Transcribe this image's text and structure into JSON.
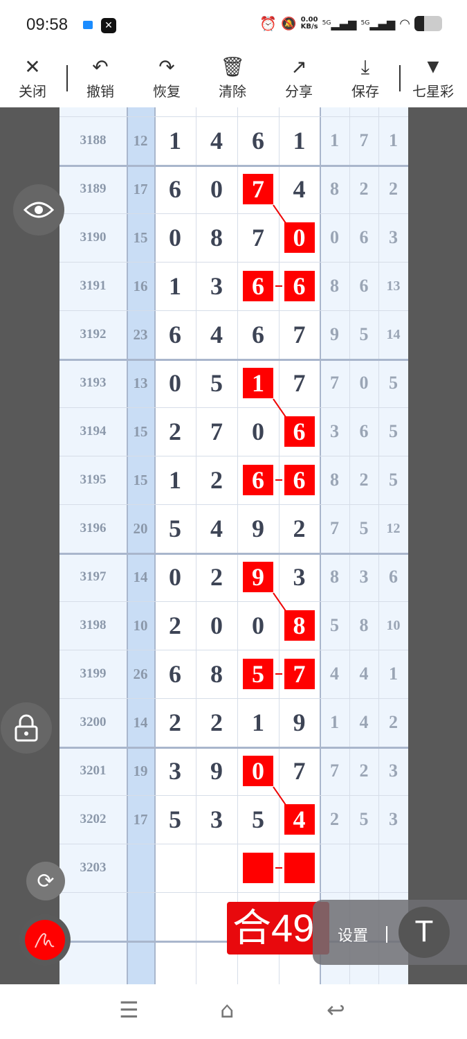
{
  "status": {
    "time": "09:58",
    "net_speed": "0.00",
    "net_unit": "KB/s",
    "sig1": "5G",
    "sig2": "5G",
    "battery_level": 0.35
  },
  "toolbar": {
    "items": [
      {
        "label": "关闭",
        "icon": "close-icon"
      },
      {
        "label": "撤销",
        "icon": "undo-icon"
      },
      {
        "label": "恢复",
        "icon": "redo-icon"
      },
      {
        "label": "清除",
        "icon": "trash-icon"
      },
      {
        "label": "分享",
        "icon": "share-icon"
      },
      {
        "label": "保存",
        "icon": "download-icon"
      },
      {
        "label": "七星彩",
        "icon": "triangle-down-icon"
      }
    ]
  },
  "colors": {
    "highlight": "#ff0000",
    "sum_column": "#c9ddf5",
    "side": "#595959"
  },
  "rows": [
    {
      "issue": "3188",
      "sum": "12",
      "digits": [
        "1",
        "4",
        "6",
        "1"
      ],
      "extras": [
        "1",
        "7",
        "1"
      ],
      "marks": []
    },
    {
      "issue": "3189",
      "sum": "17",
      "digits": [
        "6",
        "0",
        "7",
        "4"
      ],
      "extras": [
        "8",
        "2",
        "2"
      ],
      "marks": [
        2
      ],
      "link": "diagonal"
    },
    {
      "issue": "3190",
      "sum": "15",
      "digits": [
        "0",
        "8",
        "7",
        "0"
      ],
      "extras": [
        "0",
        "6",
        "3"
      ],
      "marks": [
        3
      ]
    },
    {
      "issue": "3191",
      "sum": "16",
      "digits": [
        "1",
        "3",
        "6",
        "6"
      ],
      "extras": [
        "8",
        "6",
        "13"
      ],
      "marks": [
        2,
        3
      ],
      "link": "dash"
    },
    {
      "issue": "3192",
      "sum": "23",
      "digits": [
        "6",
        "4",
        "6",
        "7"
      ],
      "extras": [
        "9",
        "5",
        "14"
      ],
      "marks": []
    },
    {
      "issue": "3193",
      "sum": "13",
      "digits": [
        "0",
        "5",
        "1",
        "7"
      ],
      "extras": [
        "7",
        "0",
        "5"
      ],
      "marks": [
        2
      ],
      "link": "diagonal"
    },
    {
      "issue": "3194",
      "sum": "15",
      "digits": [
        "2",
        "7",
        "0",
        "6"
      ],
      "extras": [
        "3",
        "6",
        "5"
      ],
      "marks": [
        3
      ]
    },
    {
      "issue": "3195",
      "sum": "15",
      "digits": [
        "1",
        "2",
        "6",
        "6"
      ],
      "extras": [
        "8",
        "2",
        "5"
      ],
      "marks": [
        2,
        3
      ],
      "link": "dash"
    },
    {
      "issue": "3196",
      "sum": "20",
      "digits": [
        "5",
        "4",
        "9",
        "2"
      ],
      "extras": [
        "7",
        "5",
        "12"
      ],
      "marks": []
    },
    {
      "issue": "3197",
      "sum": "14",
      "digits": [
        "0",
        "2",
        "9",
        "3"
      ],
      "extras": [
        "8",
        "3",
        "6"
      ],
      "marks": [
        2
      ],
      "link": "diagonal"
    },
    {
      "issue": "3198",
      "sum": "10",
      "digits": [
        "2",
        "0",
        "0",
        "8"
      ],
      "extras": [
        "5",
        "8",
        "10"
      ],
      "marks": [
        3
      ]
    },
    {
      "issue": "3199",
      "sum": "26",
      "digits": [
        "6",
        "8",
        "5",
        "7"
      ],
      "extras": [
        "4",
        "4",
        "1"
      ],
      "marks": [
        2,
        3
      ],
      "link": "dash"
    },
    {
      "issue": "3200",
      "sum": "14",
      "digits": [
        "2",
        "2",
        "1",
        "9"
      ],
      "extras": [
        "1",
        "4",
        "2"
      ],
      "marks": []
    },
    {
      "issue": "3201",
      "sum": "19",
      "digits": [
        "3",
        "9",
        "0",
        "7"
      ],
      "extras": [
        "7",
        "2",
        "3"
      ],
      "marks": [
        2
      ],
      "link": "diagonal"
    },
    {
      "issue": "3202",
      "sum": "17",
      "digits": [
        "5",
        "3",
        "5",
        "4"
      ],
      "extras": [
        "2",
        "5",
        "3"
      ],
      "marks": [
        3
      ]
    },
    {
      "issue": "3203",
      "sum": "",
      "digits": [
        "",
        "",
        "",
        ""
      ],
      "extras": [
        "",
        "",
        ""
      ],
      "marks": [
        2,
        3
      ],
      "link": "dash"
    }
  ],
  "overlay": {
    "sum_badge": "合49",
    "settings_label": "设置",
    "text_button": "T"
  }
}
